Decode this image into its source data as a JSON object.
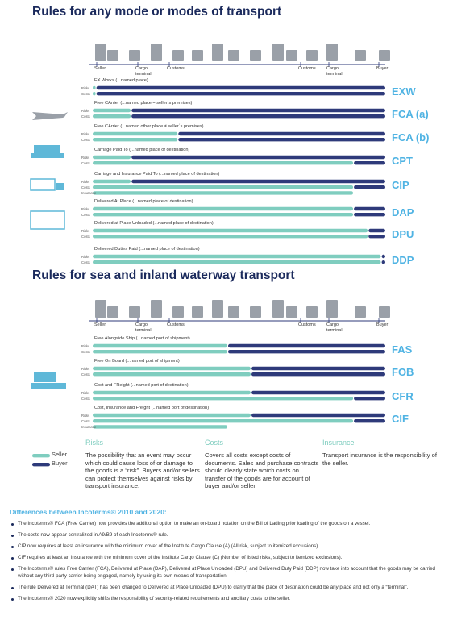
{
  "sections": [
    {
      "title": "Rules for any mode or modes of transport",
      "stages": [
        "Seller",
        "Cargo terminal",
        "Customs",
        "Customs",
        "Cargo terminal",
        "Buyer"
      ],
      "rules": [
        {
          "label": "EX Works (...named place)",
          "code": "EXW",
          "rows": [
            "Risks",
            "Costs"
          ]
        },
        {
          "label": "Free CArrier (...named place = seller´s premises)",
          "code": "FCA (a)",
          "rows": [
            "Risks",
            "Costs"
          ]
        },
        {
          "label": "Free CArrier (...named other place ≠ seller´s premises)",
          "code": "FCA (b)",
          "rows": [
            "Risks",
            "Costs"
          ]
        },
        {
          "label": "Carriage Paid To (...named place of destination)",
          "code": "CPT",
          "rows": [
            "Risks",
            "Costs"
          ]
        },
        {
          "label": "Carriage and Insurance Paid To (...named place of destination)",
          "code": "CIP",
          "rows": [
            "Risks",
            "Costs",
            "Insurance"
          ]
        },
        {
          "label": "Delivered At Place (...named place of destination)",
          "code": "DAP",
          "rows": [
            "Risks",
            "Costs"
          ]
        },
        {
          "label": "Delivered at Place Unloaded (...named place of destination)",
          "code": "DPU",
          "rows": [
            "Risks",
            "Costs"
          ]
        },
        {
          "label": "Delivered Duties Paid (...named place of destination)",
          "code": "DDP",
          "rows": [
            "Risks",
            "Costs"
          ]
        }
      ]
    },
    {
      "title": "Rules for sea and inland waterway transport",
      "stages": [
        "Seller",
        "Cargo terminal",
        "Customs",
        "Customs",
        "Cargo terminal",
        "Buyer"
      ],
      "rules": [
        {
          "label": "Free Alongside Ship (...named port of shipment)",
          "code": "FAS",
          "rows": [
            "Risks",
            "Costs"
          ]
        },
        {
          "label": "Free On Board (...named port of shipment)",
          "code": "FOB",
          "rows": [
            "Risks",
            "Costs"
          ]
        },
        {
          "label": "Cost and FReight (...named port of destination)",
          "code": "CFR",
          "rows": [
            "Risks",
            "Costs"
          ]
        },
        {
          "label": "Cost, Insurance and Freight (...named port of destination)",
          "code": "CIF",
          "rows": [
            "Risks",
            "Costs",
            "Insurance"
          ]
        }
      ]
    }
  ],
  "legend": [
    "Seller",
    "Buyer"
  ],
  "definitions": [
    {
      "heading": "Risks",
      "text": "The possibility that an event may occur which could cause loss of or damage to the goods is a “risk”. Buyers and/or sellers can protect themselves against risks by transport insurance."
    },
    {
      "heading": "Costs",
      "text": "Covers all costs except costs of documents. Sales and purchase contracts should clearly state which costs on transfer of the goods are for account of buyer and/or seller."
    },
    {
      "heading": "Insurance",
      "text": "Transport insurance is the responsibility of the seller."
    }
  ],
  "differences": {
    "title": "Differences between Incoterms® 2010 and 2020:",
    "items": [
      "The Incoterms® FCA (Free Carrier) now provides the additional option to make an on-board notation on the Bill of Lading prior loading of the goods on a vessel.",
      "The costs now appear centralized in A9/B9 of each Incoterms® rule.",
      "CIP now requires at least an insurance with the minimum cover of the Institute Cargo Clause (A) (All risk, subject to itemized exclusions).",
      "CIF requires at least an insurance with the minimum cover of the Institute Cargo Clause (C) (Number of listed risks, subject to itemized exclusions).",
      "The Incoterms® rules Free Carrier (FCA), Delivered at Place (DAP), Delivered at Place Unloaded (DPU) and Delivered Duty Paid (DDP) now take into account that the goods may be carried without any third-party carrier being engaged, namely by using its own means of transportation.",
      "The rule Delivered at Terminal (DAT) has been changed to Delivered at Place Unloaded (DPU) to clarify that the place of destination could be any place and not only a “terminal”.",
      "The Incoterms® 2020 now explicitly shifts the responsibility of security-related requirements and ancillary costs to the seller."
    ]
  }
}
